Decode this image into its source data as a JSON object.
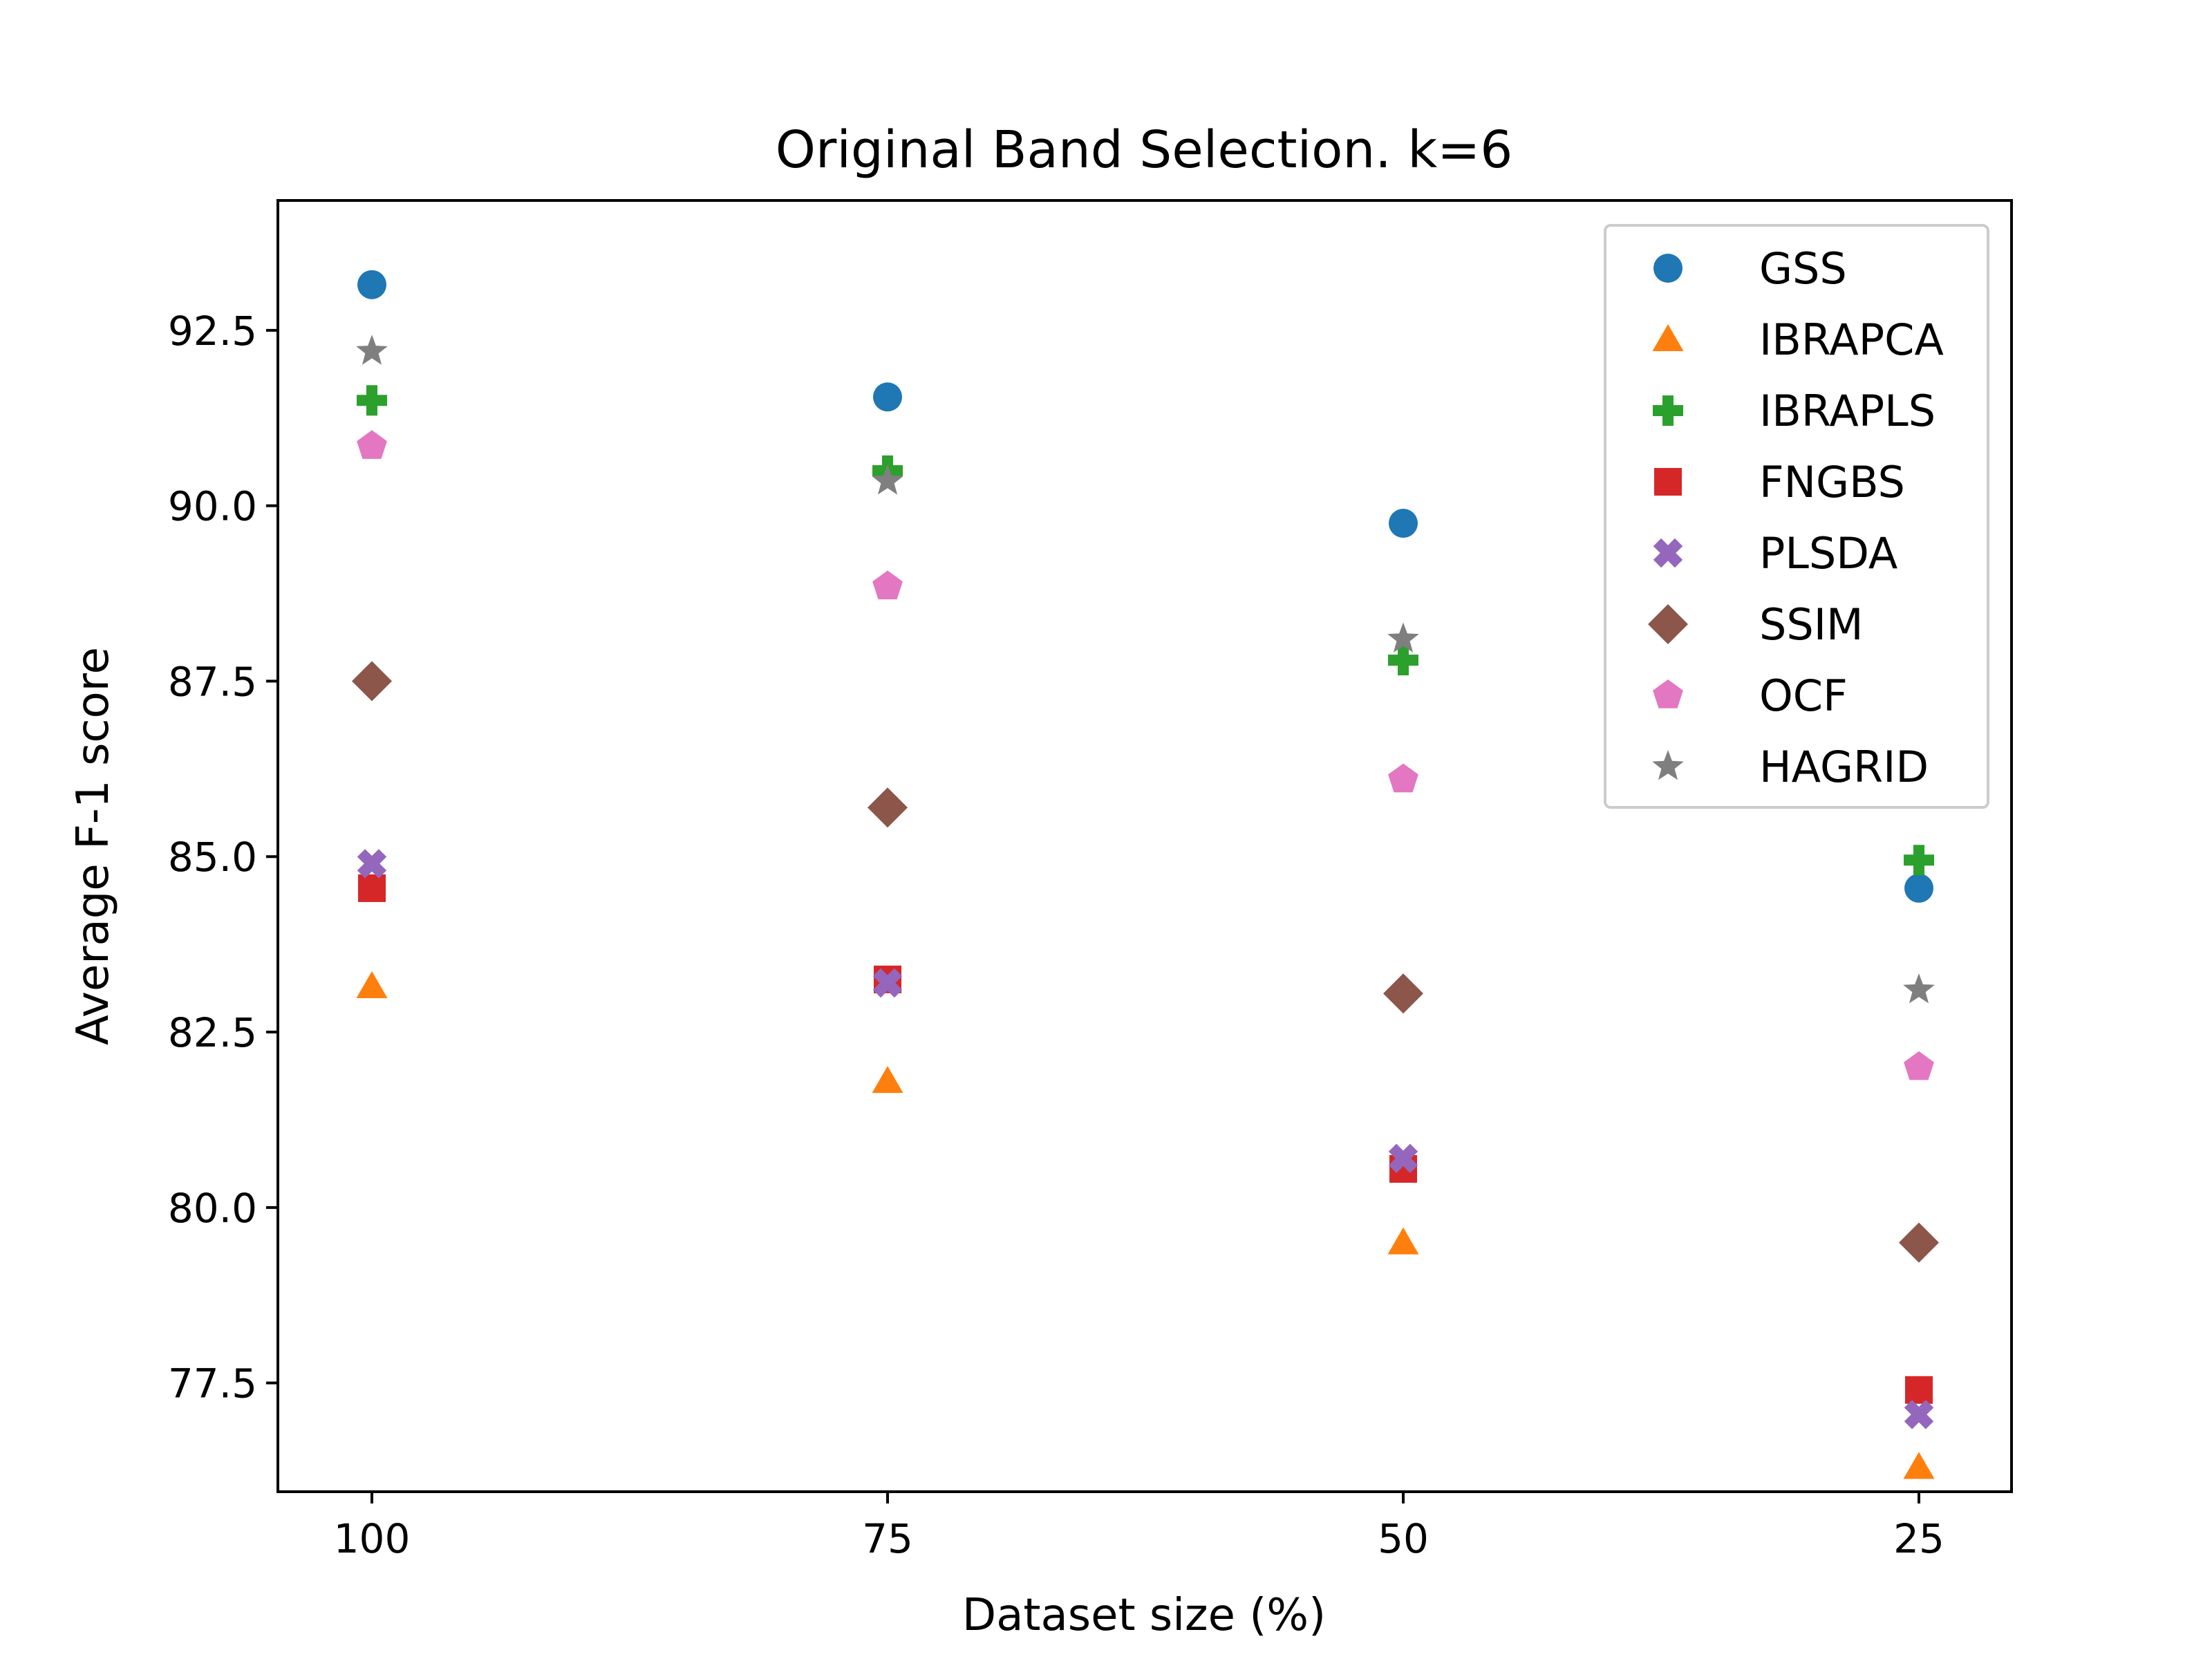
{
  "chart_data": {
    "type": "scatter",
    "title": "Original Band Selection. k=6",
    "xlabel": "Dataset size (%)",
    "ylabel": "Average F-1 score",
    "categories": [
      "100",
      "75",
      "50",
      "25"
    ],
    "ylim": [
      75.95,
      94.35
    ],
    "yticks": [
      77.5,
      80.0,
      82.5,
      85.0,
      87.5,
      90.0,
      92.5
    ],
    "ytick_labels": [
      "77.5",
      "80.0",
      "82.5",
      "85.0",
      "87.5",
      "90.0",
      "92.5"
    ],
    "grid": false,
    "legend_position": "top-right",
    "series": [
      {
        "name": "GSS",
        "marker": "circle",
        "color": "#1f77b4",
        "values": [
          93.15,
          91.55,
          89.75,
          84.55
        ]
      },
      {
        "name": "IBRAPCA",
        "marker": "triangle",
        "color": "#ff7f0e",
        "values": [
          83.15,
          81.8,
          79.5,
          76.3
        ]
      },
      {
        "name": "IBRAPLS",
        "marker": "plus",
        "color": "#2ca02c",
        "values": [
          91.5,
          90.5,
          87.8,
          84.95
        ]
      },
      {
        "name": "FNGBS",
        "marker": "square",
        "color": "#d62728",
        "values": [
          84.55,
          83.25,
          80.55,
          77.4
        ]
      },
      {
        "name": "PLSDA",
        "marker": "x",
        "color": "#9467bd",
        "values": [
          84.9,
          83.2,
          80.7,
          77.05
        ]
      },
      {
        "name": "SSIM",
        "marker": "diamond",
        "color": "#8c564b",
        "values": [
          87.5,
          85.7,
          83.05,
          79.5
        ]
      },
      {
        "name": "OCF",
        "marker": "pentagon",
        "color": "#e377c2",
        "values": [
          90.85,
          88.85,
          86.1,
          82.0
        ]
      },
      {
        "name": "HAGRID",
        "marker": "star",
        "color": "#7f7f7f",
        "values": [
          92.2,
          90.35,
          88.1,
          83.1
        ]
      }
    ]
  }
}
